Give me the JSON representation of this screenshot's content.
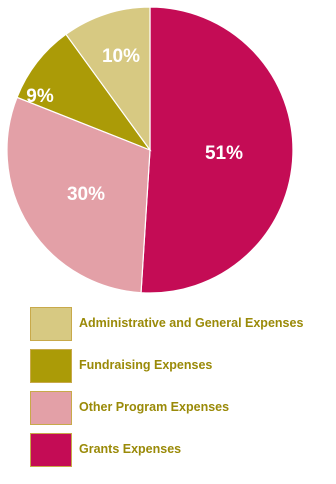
{
  "chart_data": {
    "type": "pie",
    "slices": [
      {
        "label": "Grants Expenses",
        "value": 51,
        "display": "51%",
        "color": "#c40c55"
      },
      {
        "label": "Other Program Expenses",
        "value": 30,
        "display": "30%",
        "color": "#e3a0a7"
      },
      {
        "label": "Fundraising Expenses",
        "value": 9,
        "display": "9%",
        "color": "#ab9b07"
      },
      {
        "label": "Administrative and General Expenses",
        "value": 10,
        "display": "10%",
        "color": "#d7c982"
      }
    ],
    "legend_order": [
      3,
      2,
      1,
      0
    ],
    "start_angle_deg": 0,
    "legend_text_color": "#9a8a08",
    "legend_placement": "bottom"
  }
}
